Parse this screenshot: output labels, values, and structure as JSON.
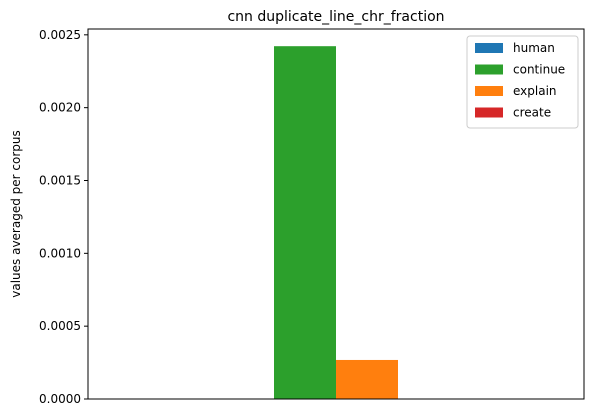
{
  "chart_data": {
    "type": "bar",
    "title": "cnn duplicate_line_chr_fraction",
    "xlabel": "",
    "ylabel": "values averaged per corpus",
    "ylim": [
      0,
      0.00254
    ],
    "yticks": [
      "0.0000",
      "0.0005",
      "0.0010",
      "0.0015",
      "0.0020",
      "0.0025"
    ],
    "ytick_values": [
      0,
      0.0005,
      0.001,
      0.0015,
      0.002,
      0.0025
    ],
    "grid": false,
    "legend_position": "top-right",
    "categories": [
      ""
    ],
    "series": [
      {
        "name": "human",
        "color": "#1f77b4",
        "values": [
          0
        ]
      },
      {
        "name": "continue",
        "color": "#2ca02c",
        "values": [
          0.002422
        ]
      },
      {
        "name": "explain",
        "color": "#ff7f0e",
        "values": [
          0.000268
        ]
      },
      {
        "name": "create",
        "color": "#d62728",
        "values": [
          0
        ]
      }
    ]
  }
}
